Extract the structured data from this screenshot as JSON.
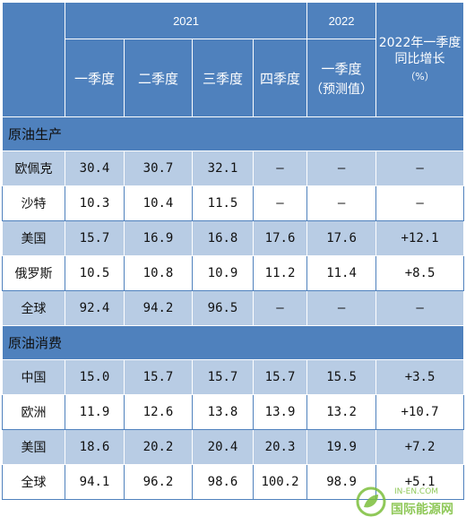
{
  "header": {
    "year_2021": "2021",
    "year_2022": "2022",
    "q1": "一季度",
    "q2": "二季度",
    "q3": "三季度",
    "q4": "四季度",
    "q1_2022": "一季度",
    "q1_2022_note": "（预测值）",
    "growth_title": "2022年一季度同比增长",
    "growth_unit": "（%）"
  },
  "sections": {
    "production": "原油生产",
    "consumption": "原油消费"
  },
  "production_rows": [
    {
      "name": "欧佩克",
      "q1": "30.4",
      "q2": "30.7",
      "q3": "32.1",
      "q4": "–",
      "q1_2022": "–",
      "growth": "–"
    },
    {
      "name": "沙特",
      "q1": "10.3",
      "q2": "10.4",
      "q3": "11.5",
      "q4": "–",
      "q1_2022": "–",
      "growth": "–"
    },
    {
      "name": "美国",
      "q1": "15.7",
      "q2": "16.9",
      "q3": "16.8",
      "q4": "17.6",
      "q1_2022": "17.6",
      "growth": "+12.1"
    },
    {
      "name": "俄罗斯",
      "q1": "10.5",
      "q2": "10.8",
      "q3": "10.9",
      "q4": "11.2",
      "q1_2022": "11.4",
      "growth": "+8.5"
    },
    {
      "name": "全球",
      "q1": "92.4",
      "q2": "94.2",
      "q3": "96.5",
      "q4": "–",
      "q1_2022": "–",
      "growth": "–"
    }
  ],
  "consumption_rows": [
    {
      "name": "中国",
      "q1": "15.0",
      "q2": "15.7",
      "q3": "15.7",
      "q4": "15.7",
      "q1_2022": "15.5",
      "growth": "+3.5"
    },
    {
      "name": "欧洲",
      "q1": "11.9",
      "q2": "12.6",
      "q3": "13.8",
      "q4": "13.9",
      "q1_2022": "13.2",
      "growth": "+10.7"
    },
    {
      "name": "美国",
      "q1": "18.6",
      "q2": "20.2",
      "q3": "20.4",
      "q4": "20.3",
      "q1_2022": "19.9",
      "growth": "+7.2"
    },
    {
      "name": "全球",
      "q1": "94.1",
      "q2": "96.2",
      "q3": "98.6",
      "q4": "100.2",
      "q1_2022": "98.9",
      "growth": "+5.1"
    }
  ],
  "watermark": {
    "small": "IN-EN.COM",
    "text": "国际能源网"
  },
  "colors": {
    "header_blue": "#4f81bd",
    "row_light": "#b8cce4",
    "watermark_green": "#7cbf3c"
  }
}
